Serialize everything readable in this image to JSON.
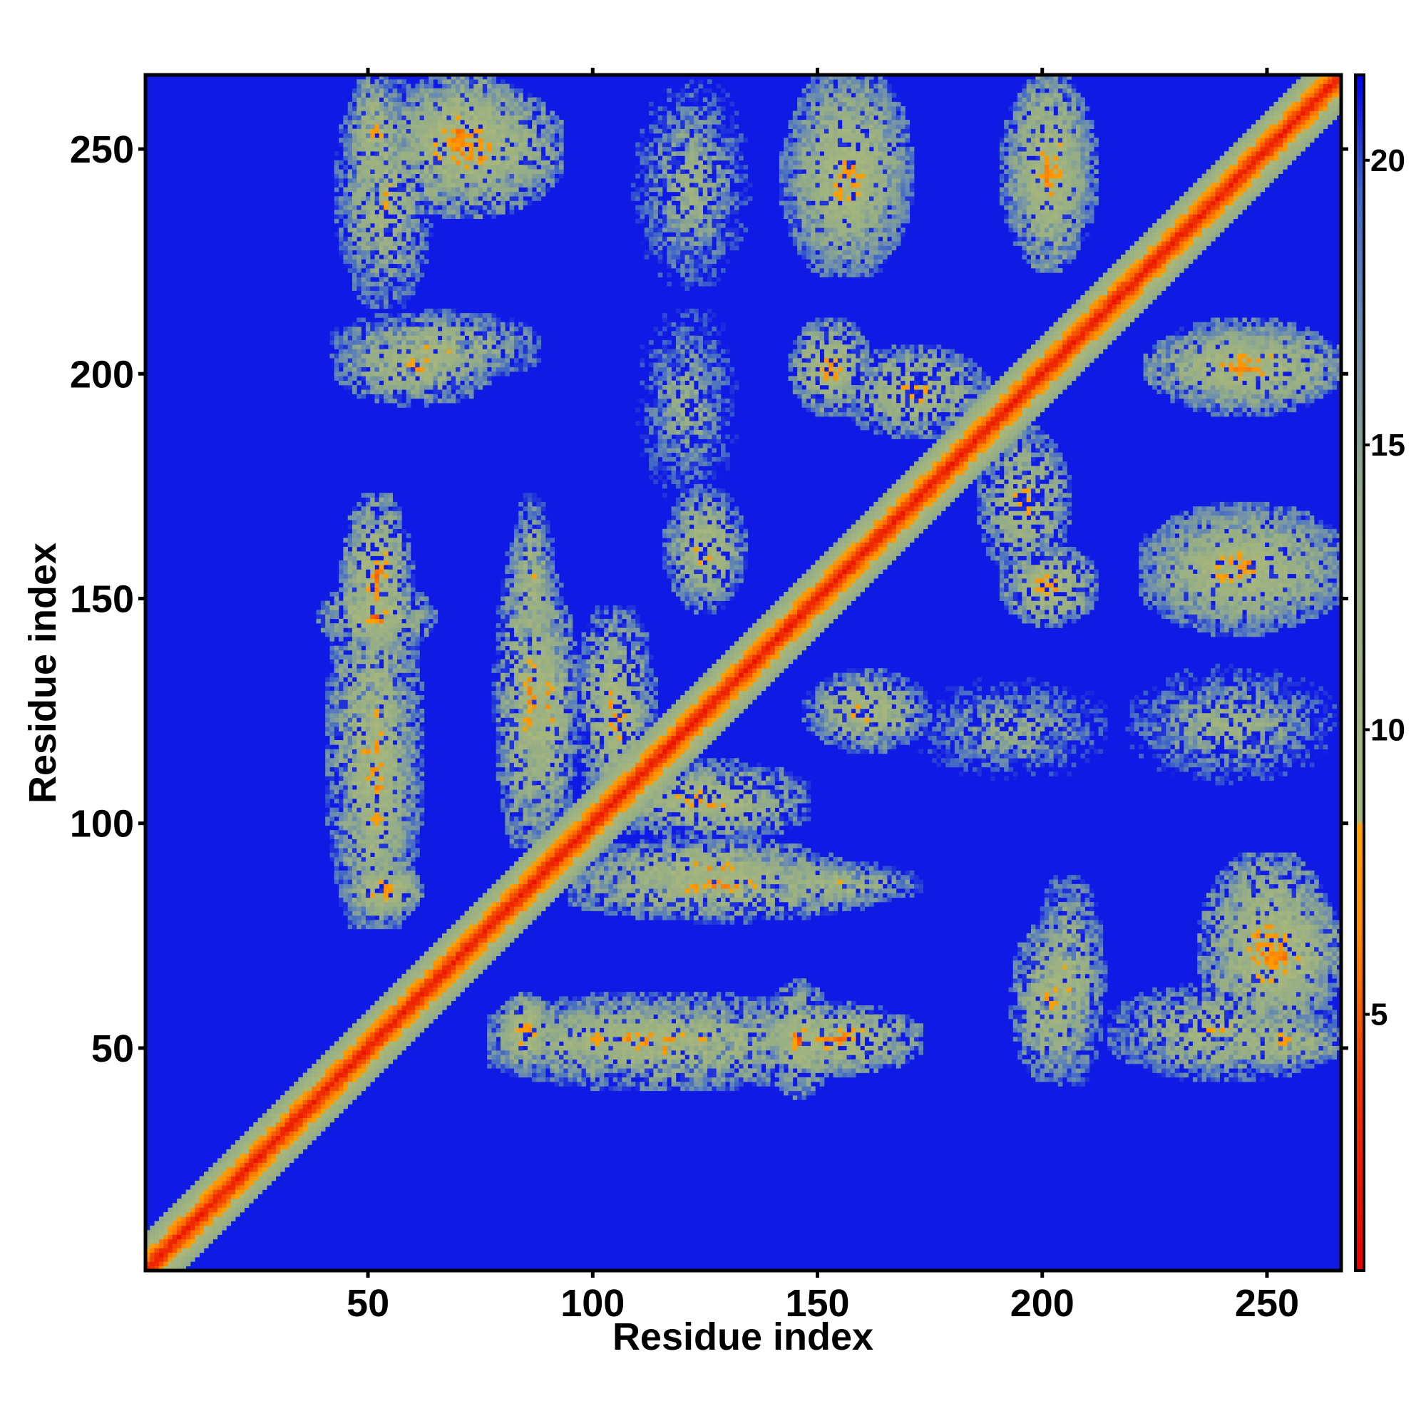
{
  "chart_data": {
    "type": "heatmap",
    "subtype": "residue contact / distance map",
    "xlabel": "Residue index",
    "ylabel": "Residue index",
    "xlim": [
      1,
      266
    ],
    "ylim": [
      1,
      266
    ],
    "x_ticks": [
      50,
      100,
      150,
      200,
      250
    ],
    "y_ticks": [
      50,
      100,
      150,
      200,
      250
    ],
    "grid": false,
    "symmetric": true,
    "colorbar": {
      "ticks": [
        5,
        10,
        15,
        20
      ],
      "range": [
        0.5,
        21.5
      ],
      "stops": [
        {
          "value": 0.5,
          "color": "#e80000"
        },
        {
          "value": 4.0,
          "color": "#f23b00"
        },
        {
          "value": 6.5,
          "color": "#ff8c00"
        },
        {
          "value": 8.3,
          "color": "#ffa200"
        },
        {
          "value": 8.4,
          "color": "#a9b87a"
        },
        {
          "value": 14.0,
          "color": "#93ac88"
        },
        {
          "value": 17.0,
          "color": "#6a8cb0"
        },
        {
          "value": 19.5,
          "color": "#3f66c8"
        },
        {
          "value": 21.5,
          "color": "#0000ee"
        }
      ]
    },
    "background_value": 21,
    "diagonal_band": {
      "peak_value": 1.5,
      "halfwidth_residues": 8
    },
    "contact_regions_upper": [
      {
        "x": [
          47,
          56
        ],
        "y": [
          242,
          265
        ],
        "peak": 4
      },
      {
        "x": [
          60,
          82
        ],
        "y": [
          242,
          265
        ],
        "peak": 3
      },
      {
        "x": [
          146,
          168
        ],
        "y": [
          226,
          265
        ],
        "peak": 4
      },
      {
        "x": [
          195,
          208
        ],
        "y": [
          226,
          265
        ],
        "peak": 3
      },
      {
        "x": [
          46,
          75
        ],
        "y": [
          195,
          208
        ],
        "peak": 4
      },
      {
        "x": [
          146,
          160
        ],
        "y": [
          193,
          210
        ],
        "peak": 3
      },
      {
        "x": [
          158,
          185
        ],
        "y": [
          188,
          204
        ],
        "peak": 4
      },
      {
        "x": [
          46,
          58
        ],
        "y": [
          140,
          170
        ],
        "peak": 3
      },
      {
        "x": [
          83,
          90
        ],
        "y": [
          140,
          170
        ],
        "peak": 5
      },
      {
        "x": [
          118,
          132
        ],
        "y": [
          150,
          172
        ],
        "peak": 4
      },
      {
        "x": [
          46,
          58
        ],
        "y": [
          80,
          132
        ],
        "peak": 4
      },
      {
        "x": [
          85,
          95
        ],
        "y": [
          100,
          150
        ],
        "peak": 4
      },
      {
        "x": [
          98,
          112
        ],
        "y": [
          105,
          145
        ],
        "peak": 4
      },
      {
        "x": [
          46,
          60
        ],
        "y": [
          80,
          90
        ],
        "peak": 3
      },
      {
        "x": [
          98,
          160
        ],
        "y": [
          80,
          92
        ],
        "peak": 4
      },
      {
        "x": [
          80,
          152
        ],
        "y": [
          43,
          60
        ],
        "peak": 4
      },
      {
        "x": [
          140,
          152
        ],
        "y": [
          42,
          62
        ],
        "peak": 3
      },
      {
        "x": [
          200,
          212
        ],
        "y": [
          45,
          85
        ],
        "peak": 5
      },
      {
        "x": [
          218,
          262
        ],
        "y": [
          45,
          62
        ],
        "peak": 5
      },
      {
        "x": [
          238,
          262
        ],
        "y": [
          55,
          90
        ],
        "peak": 3
      },
      {
        "x": [
          222,
          262
        ],
        "y": [
          112,
          132
        ],
        "peak": 7
      },
      {
        "x": [
          175,
          212
        ],
        "y": [
          112,
          130
        ],
        "peak": 8
      },
      {
        "x": [
          225,
          262
        ],
        "y": [
          145,
          168
        ],
        "peak": 4
      },
      {
        "x": [
          228,
          262
        ],
        "y": [
          193,
          210
        ],
        "peak": 4
      },
      {
        "x": [
          80,
          90
        ],
        "y": [
          48,
          60
        ],
        "peak": 3
      }
    ],
    "matrix_size": 266,
    "pixel_note": "Cell values are generated from the contact_regions list and diagonal band; the map is symmetric about the diagonal."
  }
}
